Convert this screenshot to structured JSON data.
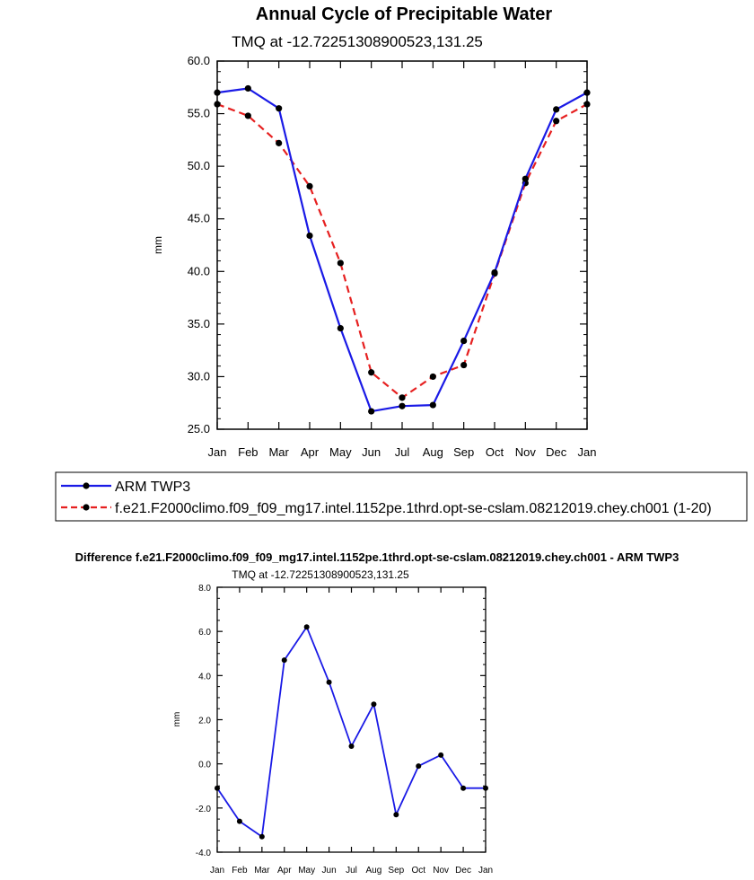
{
  "colors": {
    "obs": "#1a1ae6",
    "model": "#e62020",
    "marker": "#000000",
    "axis": "#000000"
  },
  "chart_data": [
    {
      "type": "line",
      "title": "Annual Cycle of Precipitable Water",
      "subtitle": "TMQ at -12.72251308900523,131.25",
      "ylabel": "mm",
      "xlabel": "",
      "ylim": [
        25.0,
        60.0
      ],
      "yticks": [
        "60.0",
        "55.0",
        "50.0",
        "45.0",
        "40.0",
        "35.0",
        "30.0",
        "25.0"
      ],
      "yticks_values": [
        60,
        55,
        50,
        45,
        40,
        35,
        30,
        25
      ],
      "categories": [
        "Jan",
        "Feb",
        "Mar",
        "Apr",
        "May",
        "Jun",
        "Jul",
        "Aug",
        "Sep",
        "Oct",
        "Nov",
        "Dec",
        "Jan"
      ],
      "series": [
        {
          "name": "ARM TWP3",
          "style": "solid",
          "values": [
            57.0,
            57.4,
            55.5,
            43.4,
            34.6,
            26.7,
            27.2,
            27.3,
            33.4,
            39.9,
            48.8,
            55.4,
            57.0
          ]
        },
        {
          "name": "f.e21.F2000climo.f09_f09_mg17.intel.1152pe.1thrd.opt-se-cslam.08212019.chey.ch001 (1-20)",
          "style": "dashed",
          "values": [
            55.9,
            54.8,
            52.2,
            48.1,
            40.8,
            30.4,
            28.0,
            30.0,
            31.1,
            39.8,
            48.4,
            54.3,
            55.9
          ]
        }
      ]
    },
    {
      "type": "line",
      "title": "Difference f.e21.F2000climo.f09_f09_mg17.intel.1152pe.1thrd.opt-se-cslam.08212019.chey.ch001 - ARM TWP3",
      "subtitle": "TMQ at -12.72251308900523,131.25",
      "ylabel": "mm",
      "xlabel": "",
      "ylim": [
        -4.0,
        8.0
      ],
      "yticks": [
        "8.0",
        "6.0",
        "4.0",
        "2.0",
        "0.0",
        "-2.0",
        "-4.0"
      ],
      "yticks_values": [
        8,
        6,
        4,
        2,
        0,
        -2,
        -4
      ],
      "categories": [
        "Jan",
        "Feb",
        "Mar",
        "Apr",
        "May",
        "Jun",
        "Jul",
        "Aug",
        "Sep",
        "Oct",
        "Nov",
        "Dec",
        "Jan"
      ],
      "series": [
        {
          "name": "Difference",
          "style": "solid",
          "values": [
            -1.1,
            -2.6,
            -3.3,
            4.7,
            6.2,
            3.7,
            0.8,
            2.7,
            -2.3,
            -0.1,
            0.4,
            -1.1,
            -1.1
          ]
        }
      ]
    }
  ]
}
